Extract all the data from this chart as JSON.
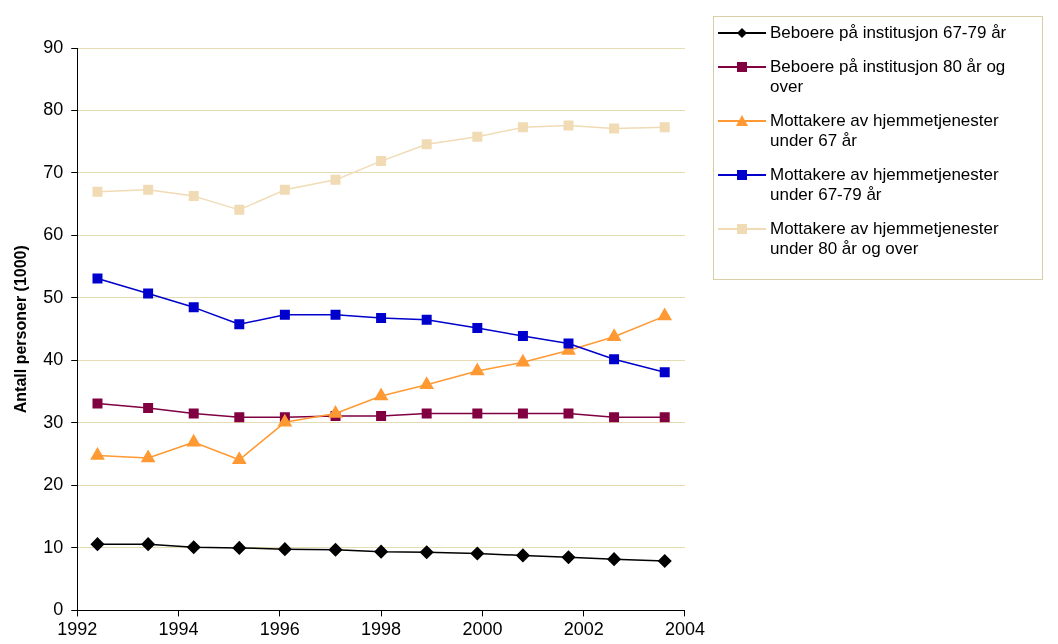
{
  "chart_data": {
    "type": "line",
    "ylabel": "Antall personer (1000)",
    "x": [
      1992.4,
      1993.4,
      1994.3,
      1995.2,
      1996.1,
      1997.1,
      1998.0,
      1998.9,
      1999.9,
      2000.8,
      2001.7,
      2002.6,
      2003.6
    ],
    "xlim": [
      1992,
      2004
    ],
    "xticks": [
      1992,
      1994,
      1996,
      1998,
      2000,
      2002,
      2004
    ],
    "ylim": [
      0,
      90
    ],
    "yticks": [
      0,
      10,
      20,
      30,
      40,
      50,
      60,
      70,
      80,
      90
    ],
    "grid": "y",
    "legend": "right",
    "line_style": "solid",
    "series": [
      {
        "name": "Beboere på institusjon 67-79 år",
        "color": "#000000",
        "marker": "diamond",
        "values": [
          10.6,
          10.6,
          10.1,
          10.0,
          9.8,
          9.7,
          9.4,
          9.3,
          9.1,
          8.8,
          8.5,
          8.2,
          7.9
        ]
      },
      {
        "name": "Beboere på institusjon 80 år og over",
        "color": "#800040",
        "marker": "square",
        "values": [
          33.1,
          32.4,
          31.5,
          30.9,
          30.9,
          31.1,
          31.1,
          31.5,
          31.5,
          31.5,
          31.5,
          30.9,
          30.9
        ]
      },
      {
        "name": "Mottakere av hjemmetjenester under 67 år",
        "color": "#ff9933",
        "marker": "triangle",
        "values": [
          24.8,
          24.4,
          26.9,
          24.1,
          30.1,
          31.5,
          34.3,
          36.1,
          38.3,
          39.7,
          41.6,
          43.8,
          47.1
        ]
      },
      {
        "name": "Mottakere av hjemmetjenester under 67-79 år",
        "color": "#0000cc",
        "marker": "square",
        "values": [
          53.1,
          50.7,
          48.5,
          45.8,
          47.3,
          47.3,
          46.8,
          46.5,
          45.2,
          43.9,
          42.7,
          40.2,
          38.1
        ]
      },
      {
        "name": "Mottakere av hjemmetjenester under 80 år og over",
        "color": "#f0dbb5",
        "marker": "square",
        "values": [
          67.0,
          67.3,
          66.3,
          64.1,
          67.3,
          68.9,
          71.9,
          74.6,
          75.8,
          77.3,
          77.6,
          77.1,
          77.3
        ]
      }
    ]
  }
}
